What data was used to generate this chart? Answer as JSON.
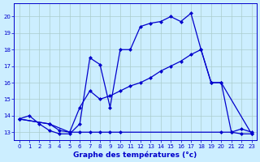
{
  "xlabel": "Graphe des températures (°c)",
  "bg_color": "#cceeff",
  "grid_color": "#aacccc",
  "line_color": "#0000cc",
  "xlim": [
    -0.5,
    23.5
  ],
  "ylim": [
    12.5,
    20.8
  ],
  "xticks": [
    0,
    1,
    2,
    3,
    4,
    5,
    6,
    7,
    8,
    9,
    10,
    11,
    12,
    13,
    14,
    15,
    16,
    17,
    18,
    19,
    20,
    21,
    22,
    23
  ],
  "yticks": [
    13,
    14,
    15,
    16,
    17,
    18,
    19,
    20
  ],
  "line1_x": [
    0,
    1,
    2,
    3,
    4,
    5,
    6,
    7,
    8,
    9,
    10,
    11,
    12,
    13,
    14,
    15,
    16,
    17,
    18,
    19,
    20,
    21,
    22,
    23
  ],
  "line1_y": [
    13.8,
    14.0,
    13.5,
    13.1,
    12.9,
    12.9,
    13.5,
    17.5,
    17.1,
    14.5,
    18.0,
    18.0,
    19.4,
    19.6,
    19.7,
    20.0,
    19.7,
    20.2,
    18.0,
    16.0,
    16.0,
    13.0,
    13.2,
    13.0
  ],
  "line2_x": [
    0,
    3,
    5,
    6,
    7,
    8,
    9,
    10,
    11,
    12,
    13,
    14,
    15,
    16,
    17,
    18,
    19,
    20,
    23
  ],
  "line2_y": [
    13.8,
    13.5,
    13.0,
    14.5,
    15.5,
    15.0,
    15.2,
    15.5,
    15.8,
    16.0,
    16.3,
    16.7,
    17.0,
    17.3,
    17.7,
    18.0,
    16.0,
    16.0,
    12.9
  ],
  "line3_x": [
    0,
    3,
    4,
    5,
    6,
    7,
    8,
    9,
    10,
    20,
    21,
    22,
    23
  ],
  "line3_y": [
    13.8,
    13.5,
    13.1,
    13.0,
    13.0,
    13.0,
    13.0,
    13.0,
    13.0,
    13.0,
    13.0,
    12.9,
    12.9
  ],
  "marker": "D",
  "marker_size": 2.5,
  "lw": 0.9
}
